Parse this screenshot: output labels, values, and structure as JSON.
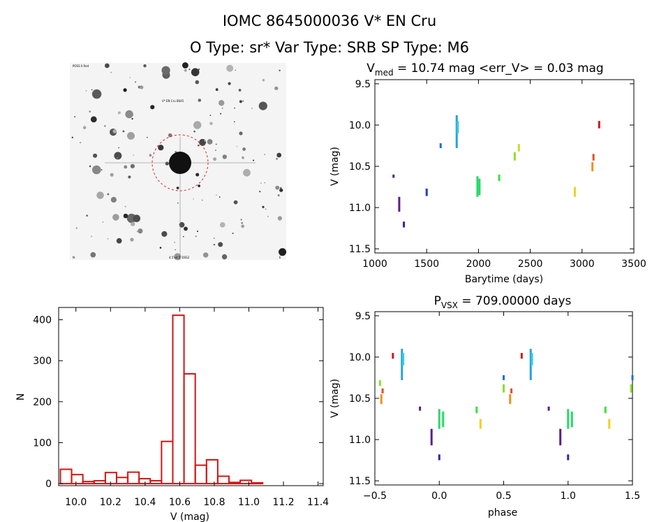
{
  "header": {
    "line1": "IOMC 8645000036   V* EN Cru",
    "line2": "O Type: sr*  Var Type: SRB  SP Type: M6"
  },
  "thumbnail": {
    "top_left_tag": "POSS II Red",
    "marker_label": "V* EN Cru 8645",
    "bottom_left_tag": "N",
    "bottom_mid_tag": "4.5'x4.5' DSS2",
    "bottom_right_tag": "E"
  },
  "chart_data": [
    {
      "type": "scatter",
      "title_parts": {
        "pre": "V",
        "sub": "med",
        "post": " = 10.74 mag <err_V> = 0.03 mag"
      },
      "xlabel": "Barytime (days)",
      "ylabel": "V (mag)",
      "xlim": [
        1000,
        3500
      ],
      "ylim": [
        11.55,
        9.45
      ],
      "xticks": [
        1000,
        1500,
        2000,
        2500,
        3000,
        3500
      ],
      "yticks": [
        9.5,
        10.0,
        10.5,
        11.0,
        11.5
      ],
      "ytick_labels": [
        "9.5",
        "10.0",
        "10.5",
        "11.0",
        "11.5"
      ],
      "grid": false,
      "series": [
        {
          "color": "#5a1e8c",
          "x": 1180,
          "y": [
            10.6,
            10.64
          ]
        },
        {
          "color": "#5a1e8c",
          "x": 1235,
          "y": [
            10.87,
            11.05
          ]
        },
        {
          "color": "#3b1fa8",
          "x": 1280,
          "y": [
            11.17,
            11.24
          ]
        },
        {
          "color": "#1f3fbf",
          "x": 1500,
          "y": [
            10.77,
            10.86
          ]
        },
        {
          "color": "#1f6fd0",
          "x": 1635,
          "y": [
            10.22,
            10.28
          ]
        },
        {
          "color": "#2aa0e0",
          "x": 1790,
          "y": [
            9.88,
            10.28
          ]
        },
        {
          "color": "#30d0e0",
          "x": 1800,
          "y": [
            9.95,
            10.1
          ]
        },
        {
          "color": "#29d96a",
          "x": 1990,
          "y": [
            10.62,
            10.87
          ]
        },
        {
          "color": "#29d96a",
          "x": 2010,
          "y": [
            10.65,
            10.85
          ]
        },
        {
          "color": "#3ce03c",
          "x": 2200,
          "y": [
            10.6,
            10.68
          ]
        },
        {
          "color": "#8ee02a",
          "x": 2350,
          "y": [
            10.33,
            10.43
          ]
        },
        {
          "color": "#c0e028",
          "x": 2390,
          "y": [
            10.23,
            10.32
          ]
        },
        {
          "color": "#f0d020",
          "x": 2930,
          "y": [
            10.75,
            10.87
          ]
        },
        {
          "color": "#f09020",
          "x": 3100,
          "y": [
            10.45,
            10.56
          ]
        },
        {
          "color": "#e05020",
          "x": 3110,
          "y": [
            10.35,
            10.43
          ]
        },
        {
          "color": "#d01818",
          "x": 3165,
          "y": [
            9.95,
            10.04
          ]
        }
      ]
    },
    {
      "type": "bar",
      "xlabel": "V (mag)",
      "ylabel": "N",
      "xlim": [
        9.9,
        11.43
      ],
      "ylim": [
        -5,
        430
      ],
      "xticks": [
        10.0,
        10.2,
        10.4,
        10.6,
        10.8,
        11.0,
        11.2,
        11.4
      ],
      "xtick_labels": [
        "10.0",
        "10.2",
        "10.4",
        "10.6",
        "10.8",
        "11.0",
        "11.2",
        "11.4"
      ],
      "yticks": [
        0,
        100,
        200,
        300,
        400
      ],
      "bin_start": 9.91,
      "bin_width": 0.065,
      "values": [
        35,
        22,
        5,
        7,
        27,
        15,
        28,
        12,
        7,
        103,
        411,
        268,
        45,
        58,
        18,
        3,
        8,
        2
      ],
      "color": "#d41414",
      "grid": false
    },
    {
      "type": "scatter",
      "title_parts": {
        "pre": "P",
        "sub": "VSX",
        "post": " = 709.00000 days"
      },
      "xlabel": "phase",
      "ylabel": "V (mag)",
      "xlim": [
        -0.5,
        1.5
      ],
      "ylim": [
        11.55,
        9.45
      ],
      "xticks": [
        -0.5,
        0.0,
        0.5,
        1.0,
        1.5
      ],
      "xtick_labels": [
        "−0.5",
        "0.0",
        "0.5",
        "1.0",
        "1.5"
      ],
      "yticks": [
        9.5,
        10.0,
        10.5,
        11.0,
        11.5
      ],
      "ytick_labels": [
        "9.5",
        "10.0",
        "10.5",
        "11.0",
        "11.5"
      ],
      "grid": false,
      "series": [
        {
          "color": "#8ee02a",
          "x": -0.46,
          "y": [
            10.28,
            10.35
          ]
        },
        {
          "color": "#f09020",
          "x": -0.45,
          "y": [
            10.45,
            10.57
          ]
        },
        {
          "color": "#e05020",
          "x": -0.44,
          "y": [
            10.38,
            10.44
          ]
        },
        {
          "color": "#d01818",
          "x": -0.36,
          "y": [
            9.95,
            10.02
          ]
        },
        {
          "color": "#2aa0e0",
          "x": -0.29,
          "y": [
            9.9,
            10.28
          ]
        },
        {
          "color": "#30d0e0",
          "x": -0.28,
          "y": [
            9.95,
            10.1
          ]
        },
        {
          "color": "#5a1e8c",
          "x": -0.15,
          "y": [
            10.6,
            10.65
          ]
        },
        {
          "color": "#5a1e8c",
          "x": -0.06,
          "y": [
            10.87,
            11.07
          ]
        },
        {
          "color": "#3b1fa8",
          "x": 0.0,
          "y": [
            11.18,
            11.25
          ]
        },
        {
          "color": "#29d96a",
          "x": 0.0,
          "y": [
            10.63,
            10.87
          ]
        },
        {
          "color": "#29d96a",
          "x": 0.03,
          "y": [
            10.66,
            10.85
          ]
        },
        {
          "color": "#3ce03c",
          "x": 0.29,
          "y": [
            10.6,
            10.68
          ]
        },
        {
          "color": "#f0d020",
          "x": 0.32,
          "y": [
            10.75,
            10.87
          ]
        },
        {
          "color": "#1f6fd0",
          "x": 0.5,
          "y": [
            10.22,
            10.28
          ]
        },
        {
          "color": "#8ee02a",
          "x": 0.5,
          "y": [
            10.33,
            10.43
          ]
        },
        {
          "color": "#f09020",
          "x": 0.55,
          "y": [
            10.45,
            10.57
          ]
        },
        {
          "color": "#e05020",
          "x": 0.56,
          "y": [
            10.38,
            10.44
          ]
        },
        {
          "color": "#d01818",
          "x": 0.64,
          "y": [
            9.95,
            10.02
          ]
        },
        {
          "color": "#2aa0e0",
          "x": 0.71,
          "y": [
            9.9,
            10.28
          ]
        },
        {
          "color": "#30d0e0",
          "x": 0.72,
          "y": [
            9.95,
            10.1
          ]
        },
        {
          "color": "#5a1e8c",
          "x": 0.85,
          "y": [
            10.6,
            10.65
          ]
        },
        {
          "color": "#5a1e8c",
          "x": 0.94,
          "y": [
            10.87,
            11.07
          ]
        },
        {
          "color": "#3b1fa8",
          "x": 1.0,
          "y": [
            11.18,
            11.25
          ]
        },
        {
          "color": "#29d96a",
          "x": 1.0,
          "y": [
            10.63,
            10.87
          ]
        },
        {
          "color": "#29d96a",
          "x": 1.03,
          "y": [
            10.66,
            10.85
          ]
        },
        {
          "color": "#3ce03c",
          "x": 1.29,
          "y": [
            10.6,
            10.68
          ]
        },
        {
          "color": "#f0d020",
          "x": 1.32,
          "y": [
            10.75,
            10.87
          ]
        },
        {
          "color": "#1f6fd0",
          "x": 1.5,
          "y": [
            10.22,
            10.28
          ]
        },
        {
          "color": "#8ee02a",
          "x": 1.49,
          "y": [
            10.33,
            10.43
          ]
        }
      ]
    }
  ]
}
